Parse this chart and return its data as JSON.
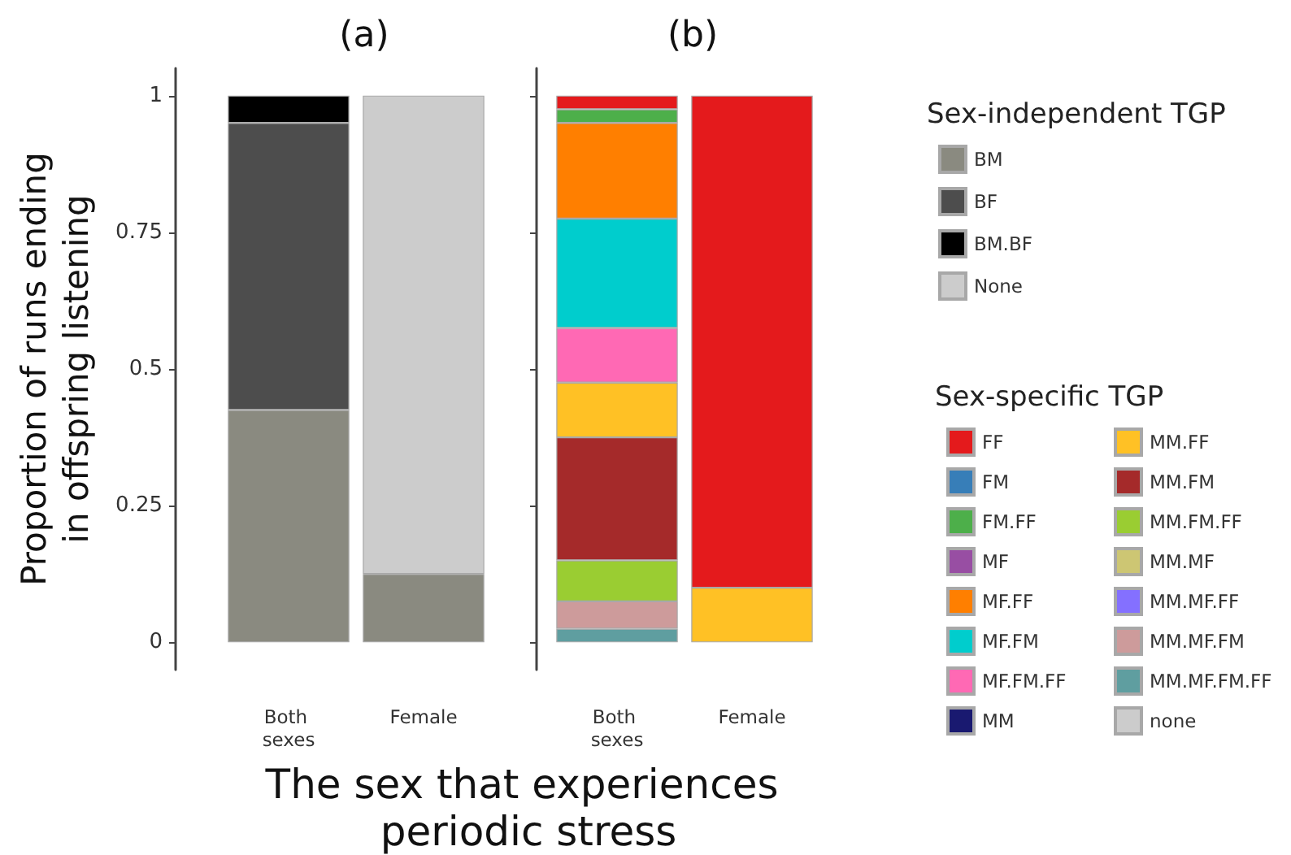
{
  "chart_data": [
    {
      "type": "bar",
      "title": "(a)",
      "ylabel": "Proportion of runs ending in offspring listening",
      "xlabel": "The sex that experiences periodic stress",
      "legend_title": "Sex-independent TGP",
      "categories": [
        "Both sexes",
        "Female"
      ],
      "stacked": true,
      "ylim": [
        -0.05,
        1.05
      ],
      "yticks": [
        0,
        0.25,
        0.5,
        0.75,
        1
      ],
      "grid": false,
      "legend": "right",
      "series": [
        {
          "name": "BM",
          "color": "#8a8a80",
          "values": [
            0.425,
            0.125
          ]
        },
        {
          "name": "BF",
          "color": "#4d4d4d",
          "values": [
            0.525,
            null
          ]
        },
        {
          "name": "BM.BF",
          "color": "#000000",
          "values": [
            0.05,
            null
          ]
        },
        {
          "name": "None",
          "color": "#cccccc",
          "values": [
            null,
            0.875
          ]
        }
      ]
    },
    {
      "type": "bar",
      "title": "(b)",
      "legend_title": "Sex-specific TGP",
      "categories": [
        "Both sexes",
        "Female"
      ],
      "stacked": true,
      "ylim": [
        -0.05,
        1.05
      ],
      "yticks": [
        0,
        0.25,
        0.5,
        0.75,
        1
      ],
      "tick_labels": "x",
      "grid": false,
      "legend": "right",
      "series": [
        {
          "name": "none",
          "color": "#cccccc",
          "values": [
            null,
            null
          ]
        },
        {
          "name": "MM.MF.FM.FF",
          "color": "#5f9ea0",
          "values": [
            0.025,
            null
          ]
        },
        {
          "name": "MM.MF.FM",
          "color": "#cd9b9b",
          "values": [
            0.05,
            null
          ]
        },
        {
          "name": "MM.MF.FF",
          "color": "#8470ff",
          "values": [
            null,
            null
          ]
        },
        {
          "name": "MM.MF",
          "color": "#cdc673",
          "values": [
            null,
            null
          ]
        },
        {
          "name": "MM.FM.FF",
          "color": "#9acd32",
          "values": [
            0.075,
            null
          ]
        },
        {
          "name": "MM.FM",
          "color": "#a52a2a",
          "values": [
            0.225,
            null
          ]
        },
        {
          "name": "MM.FF",
          "color": "#ffc125",
          "values": [
            0.1,
            0.1
          ]
        },
        {
          "name": "MM",
          "color": "#191970",
          "values": [
            null,
            null
          ]
        },
        {
          "name": "MF.FM.FF",
          "color": "#ff69b4",
          "values": [
            0.1,
            null
          ]
        },
        {
          "name": "MF.FM",
          "color": "#00cdcd",
          "values": [
            0.2,
            null
          ]
        },
        {
          "name": "MF.FF",
          "color": "#ff7f00",
          "values": [
            0.175,
            null
          ]
        },
        {
          "name": "MF",
          "color": "#984ea3",
          "values": [
            null,
            null
          ]
        },
        {
          "name": "FM.FF",
          "color": "#4daf4a",
          "values": [
            0.025,
            null
          ]
        },
        {
          "name": "FM",
          "color": "#377eb8",
          "values": [
            null,
            null
          ]
        },
        {
          "name": "FF",
          "color": "#e41a1c",
          "values": [
            0.025,
            0.9
          ]
        }
      ]
    }
  ]
}
